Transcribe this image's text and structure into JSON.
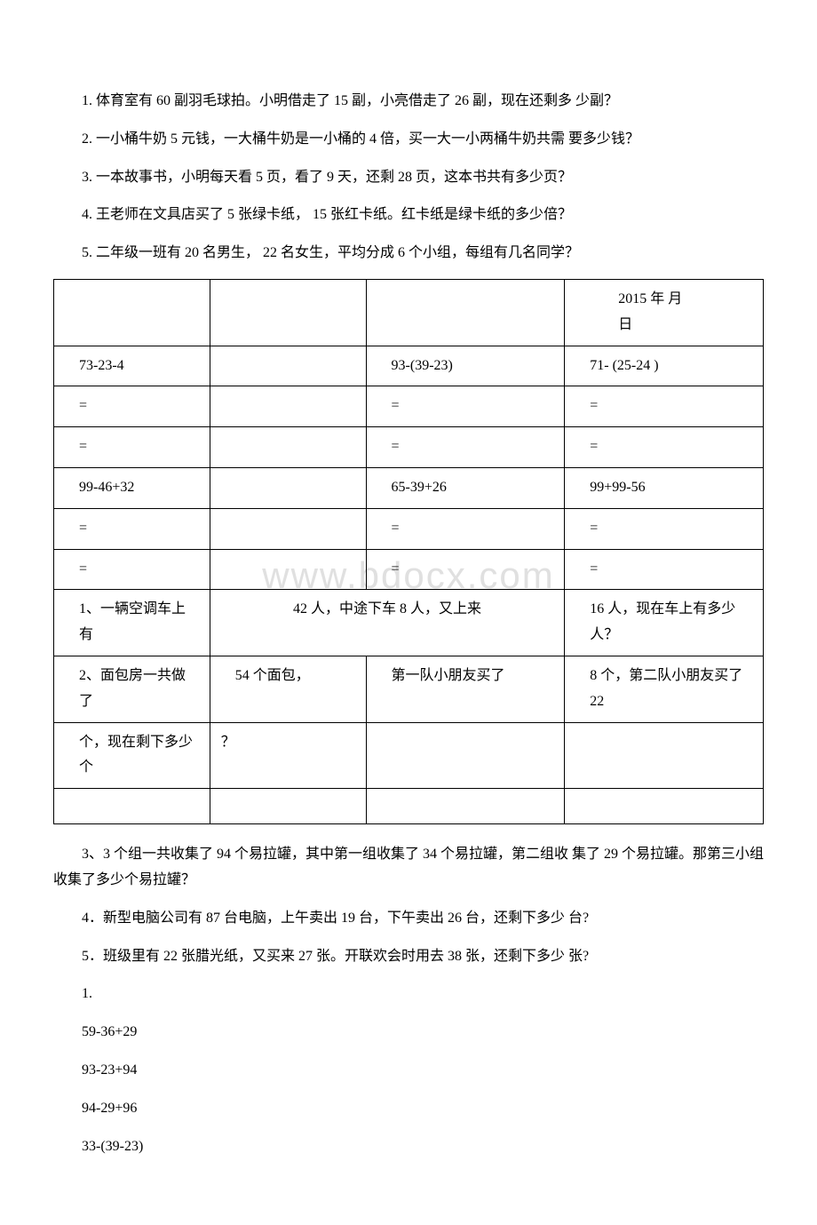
{
  "questions_top": {
    "q1": "1. 体育室有 60 副羽毛球拍。小明借走了 15 副，小亮借走了 26 副，现在还剩多 少副？",
    "q2": "2. 一小桶牛奶 5 元钱，一大桶牛奶是一小桶的 4 倍，买一大一小两桶牛奶共需 要多少钱？",
    "q3": "3. 一本故事书，小明每天看 5 页，看了 9 天，还剩 28 页，这本书共有多少页？",
    "q4": "4. 王老师在文具店买了 5 张绿卡纸， 15 张红卡纸。红卡纸是绿卡纸的多少倍？",
    "q5": "5. 二年级一班有 20 名男生， 22 名女生，平均分成 6 个小组，每组有几名同学？"
  },
  "table": {
    "r0": {
      "c0": "",
      "c1": "",
      "c2": "",
      "c3_line1": "2015 年 月",
      "c3_line2": "日"
    },
    "r1": {
      "c0": "73-23-4",
      "c1": "",
      "c2": "93-(39-23)",
      "c3": "71- (25-24 )"
    },
    "r2": {
      "c0": "=",
      "c1": "",
      "c2": "=",
      "c3": "="
    },
    "r3": {
      "c0": "=",
      "c1": "",
      "c2": "=",
      "c3": "="
    },
    "r4": {
      "c0": "99-46+32",
      "c1": "",
      "c2": "65-39+26",
      "c3": "99+99-56"
    },
    "r5": {
      "c0": "=",
      "c1": "",
      "c2": "=",
      "c3": "="
    },
    "r6": {
      "c0": "=",
      "c1": "",
      "c2": "=",
      "c3": "="
    },
    "r7": {
      "c0": "1、一辆空调车上有",
      "c12": "42 人，中途下车 8 人，又上来",
      "c3": "16 人，现在车上有多少人？"
    },
    "r8": {
      "c0": "2、面包房一共做了",
      "c1": "54 个面包，",
      "c2": "第一队小朋友买了",
      "c3": "8 个，第二队小朋友买了 22"
    },
    "r9": {
      "c0": "个，现在剩下多少个",
      "c1": "？",
      "c2": "",
      "c3": ""
    },
    "r10": {
      "c0": "",
      "c1": "",
      "c2": "",
      "c3": ""
    }
  },
  "questions_bottom": {
    "q3": "3、3 个组一共收集了 94 个易拉罐，其中第一组收集了 34 个易拉罐，第二组收 集了 29 个易拉罐。那第三小组收集了多少个易拉罐？",
    "q4": "4．新型电脑公司有 87 台电脑，上午卖出 19 台，下午卖出 26 台，还剩下多少 台?",
    "q5": "5．班级里有 22 张腊光纸，又买来 27 张。开联欢会时用去 38 张，还剩下多少 张?"
  },
  "list": {
    "header": "1.",
    "item1": "59-36+29",
    "item2": "93-23+94",
    "item3": "94-29+96",
    "item4": "33-(39-23)"
  },
  "watermark": "www.bdocx.com"
}
